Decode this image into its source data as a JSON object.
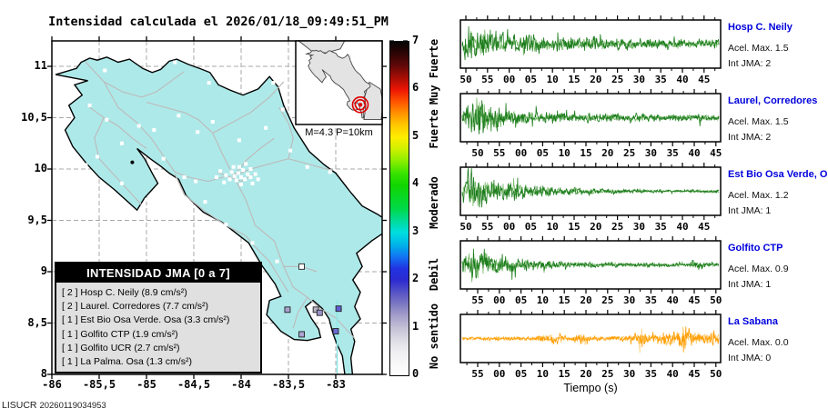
{
  "title": {
    "text": "Intensidad calculada el 2026/01/18_09:49:51_PM"
  },
  "watermark": {
    "prefix": "LISUCR ",
    "number": "20260119034953"
  },
  "map": {
    "x_ticks": [
      "-86",
      "-85,5",
      "-85",
      "-84,5",
      "-84",
      "-83,5",
      "-83"
    ],
    "y_ticks": [
      "11",
      "10,5",
      "10",
      "9,5",
      "9",
      "8,5",
      "8"
    ],
    "inset_label": "M=4.3 P=10km",
    "land_color": "#aee9e9",
    "road_color": "#bcbcbc",
    "epicenter_color": "#e00000"
  },
  "legend": {
    "title": "INTENSIDAD JMA [0 a 7]",
    "rows": [
      {
        "badge": "[ 2 ]",
        "text": "Hosp C. Neily (8.9 cm/s²)"
      },
      {
        "badge": "[ 2 ]",
        "text": "Laurel. Corredores (7.7 cm/s²)"
      },
      {
        "badge": "[ 1 ]",
        "text": "Est Bio Osa Verde. Osa (3.3 cm/s²)"
      },
      {
        "badge": "[ 1 ]",
        "text": "Golfito CTP (1.9 cm/s²)"
      },
      {
        "badge": "[ 1 ]",
        "text": "Golfito UCR (2.7 cm/s²)"
      },
      {
        "badge": "[ 1 ]",
        "text": "La Palma. Osa (1.3 cm/s²)"
      }
    ]
  },
  "colorbar": {
    "numbers": [
      "0",
      "1",
      "2",
      "3",
      "4",
      "5",
      "6",
      "7"
    ],
    "words": [
      {
        "text": "Muy Fuerte",
        "value": 6.35
      },
      {
        "text": "Fuerte",
        "value": 5.15
      },
      {
        "text": "Moderado",
        "value": 3.6
      },
      {
        "text": "Debil",
        "value": 2.1
      },
      {
        "text": "No sentido",
        "value": 0.8
      }
    ]
  },
  "stations_on_map": [
    {
      "name": "Hosp C. Neily",
      "lon": -82.97,
      "lat": 8.64,
      "color": "#5e5ed0"
    },
    {
      "name": "Laurel, Corredores",
      "lon": -83.0,
      "lat": 8.42,
      "color": "#6b6bd4"
    },
    {
      "name": "Est Bio Osa Verde, Osa",
      "lon": -83.51,
      "lat": 8.63,
      "color": "#a8a2cf"
    },
    {
      "name": "Golfito CTP",
      "lon": -83.21,
      "lat": 8.63,
      "color": "#b8b4c6"
    },
    {
      "name": "Golfito UCR",
      "lon": -83.17,
      "lat": 8.6,
      "color": "#9a94cc"
    },
    {
      "name": "La Palma. Osa",
      "lon": -83.36,
      "lat": 8.39,
      "color": "#aaa4d2"
    },
    {
      "name": "La Sabana",
      "lon": -83.36,
      "lat": 9.05,
      "color": "#ffffff"
    }
  ],
  "seismograms": {
    "xlabel": "Tiempo (s)",
    "station_color": "#0000dd",
    "traces": [
      {
        "station": "Hosp C. Neily",
        "acel": "Acel. Max. 1.5",
        "int": "Int JMA: 2",
        "color": "#1e7d1e",
        "tick_shift": 0,
        "ticks": [
          "50",
          "55",
          "00",
          "05",
          "10",
          "15",
          "20",
          "25",
          "30",
          "35",
          "40",
          "45"
        ]
      },
      {
        "station": "Laurel, Corredores",
        "acel": "Acel. Max. 1.5",
        "int": "Int JMA: 2",
        "color": "#1e7d1e",
        "tick_shift": 13,
        "ticks": [
          "50",
          "55",
          "00",
          "05",
          "10",
          "15",
          "20",
          "25",
          "30",
          "35",
          "40",
          "45"
        ]
      },
      {
        "station": "Est Bio Osa Verde, Osa",
        "acel": "Acel. Max. 1.2",
        "int": "Int JMA: 1",
        "color": "#1e7d1e",
        "tick_shift": 0,
        "ticks": [
          "50",
          "55",
          "00",
          "05",
          "10",
          "15",
          "20",
          "25",
          "30",
          "35",
          "40",
          "45"
        ]
      },
      {
        "station": "Golfito CTP",
        "acel": "Acel. Max. 0.9",
        "int": "Int JMA: 1",
        "color": "#1e7d1e",
        "tick_shift": 13,
        "ticks": [
          "55",
          "00",
          "05",
          "10",
          "15",
          "20",
          "25",
          "30",
          "35",
          "40",
          "45",
          "50"
        ]
      },
      {
        "station": "La Sabana",
        "acel": "Acel. Max. 0.0",
        "int": "Int JMA: 0",
        "color": "#ff9d00",
        "tick_shift": 13,
        "ticks": [
          "55",
          "00",
          "05",
          "10",
          "15",
          "20",
          "25",
          "30",
          "35",
          "40",
          "45",
          "50"
        ]
      }
    ]
  },
  "chart_data": [
    {
      "type": "map",
      "title": "Intensidad calculada el 2026/01/18_09:49:51_PM",
      "region": "Costa Rica",
      "x_ticks": [
        -86,
        -85.5,
        -85,
        -84.5,
        -84,
        -83.5,
        -83
      ],
      "y_ticks": [
        8,
        8.5,
        9,
        9.5,
        10,
        10.5,
        11
      ],
      "event": {
        "magnitude": 4.3,
        "depth_km": 10,
        "label": "M=4.3 P=10km"
      },
      "stations": [
        {
          "name": "Hosp C. Neily",
          "int_jma": 2,
          "acel_cm_s2": 8.9
        },
        {
          "name": "Laurel. Corredores",
          "int_jma": 2,
          "acel_cm_s2": 7.7
        },
        {
          "name": "Est Bio Osa Verde. Osa",
          "int_jma": 1,
          "acel_cm_s2": 3.3
        },
        {
          "name": "Golfito CTP",
          "int_jma": 1,
          "acel_cm_s2": 1.9
        },
        {
          "name": "Golfito UCR",
          "int_jma": 1,
          "acel_cm_s2": 2.7
        },
        {
          "name": "La Palma. Osa",
          "int_jma": 1,
          "acel_cm_s2": 1.3
        }
      ],
      "colorbar": {
        "range": [
          0,
          7
        ],
        "labels": [
          "No sentido",
          "Debil",
          "Moderado",
          "Fuerte",
          "Muy Fuerte"
        ]
      }
    },
    {
      "type": "line",
      "subtype": "seismogram-waveforms",
      "xlabel": "Tiempo (s)",
      "series": [
        {
          "name": "Hosp C. Neily",
          "acel_max": 1.5,
          "int_jma": 2,
          "time_ticks_s": [
            50,
            55,
            0,
            5,
            10,
            15,
            20,
            25,
            30,
            35,
            40,
            45
          ]
        },
        {
          "name": "Laurel, Corredores",
          "acel_max": 1.5,
          "int_jma": 2,
          "time_ticks_s": [
            50,
            55,
            0,
            5,
            10,
            15,
            20,
            25,
            30,
            35,
            40,
            45
          ]
        },
        {
          "name": "Est Bio Osa Verde, Osa",
          "acel_max": 1.2,
          "int_jma": 1,
          "time_ticks_s": [
            50,
            55,
            0,
            5,
            10,
            15,
            20,
            25,
            30,
            35,
            40,
            45
          ]
        },
        {
          "name": "Golfito CTP",
          "acel_max": 0.9,
          "int_jma": 1,
          "time_ticks_s": [
            55,
            0,
            5,
            10,
            15,
            20,
            25,
            30,
            35,
            40,
            45,
            50
          ]
        },
        {
          "name": "La Sabana",
          "acel_max": 0.0,
          "int_jma": 0,
          "time_ticks_s": [
            55,
            0,
            5,
            10,
            15,
            20,
            25,
            30,
            35,
            40,
            45,
            50
          ]
        }
      ]
    }
  ]
}
